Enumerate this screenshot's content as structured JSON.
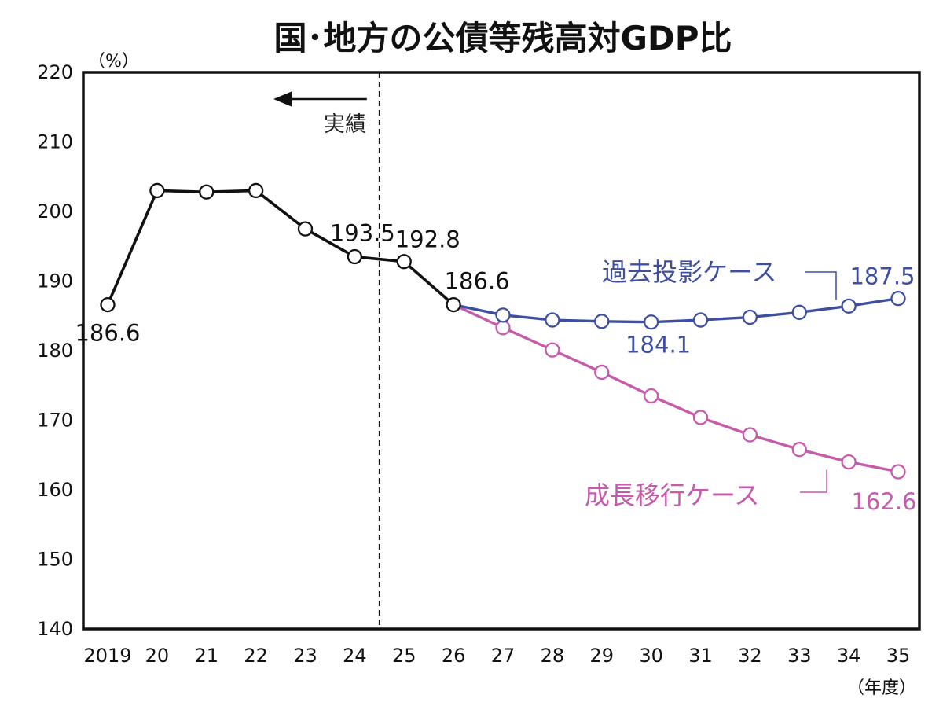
{
  "chart_data": {
    "type": "line",
    "title": "国･地方の公債等残高対GDP比",
    "ylabel": "（%）",
    "xlabel": "（年度）",
    "ylim": [
      140,
      220
    ],
    "yticks": [
      "220",
      "210",
      "200",
      "190",
      "180",
      "170",
      "160",
      "150",
      "140"
    ],
    "ytick_values": [
      220,
      210,
      200,
      190,
      180,
      170,
      160,
      150,
      140
    ],
    "categories": [
      "2019",
      "20",
      "21",
      "22",
      "23",
      "24",
      "25",
      "26",
      "27",
      "28",
      "29",
      "30",
      "31",
      "32",
      "33",
      "34",
      "35"
    ],
    "actual_marker": {
      "label": "実績",
      "between": [
        "24",
        "25"
      ],
      "direction": "left"
    },
    "series": [
      {
        "color": "#111111",
        "x": [
          "2019",
          "20",
          "21",
          "22",
          "23",
          "24",
          "25",
          "26"
        ],
        "values": [
          186.6,
          203.0,
          202.8,
          203.0,
          197.5,
          193.5,
          192.8,
          186.6
        ]
      },
      {
        "name": "過去投影ケース",
        "color": "#3f4fa0",
        "x": [
          "26",
          "27",
          "28",
          "29",
          "30",
          "31",
          "32",
          "33",
          "34",
          "35"
        ],
        "values": [
          186.6,
          185.1,
          184.4,
          184.2,
          184.1,
          184.4,
          184.8,
          185.5,
          186.4,
          187.5
        ]
      },
      {
        "name": "成長移行ケース",
        "color": "#c65aab",
        "x": [
          "26",
          "27",
          "28",
          "29",
          "30",
          "31",
          "32",
          "33",
          "34",
          "35"
        ],
        "values": [
          186.6,
          183.3,
          180.1,
          176.9,
          173.5,
          170.4,
          167.9,
          165.8,
          164.0,
          162.6
        ]
      }
    ],
    "data_labels": [
      {
        "text": "186.6",
        "series": 0,
        "x": "2019"
      },
      {
        "text": "193.5",
        "series": 0,
        "x": "24"
      },
      {
        "text": "192.8",
        "series": 0,
        "x": "25"
      },
      {
        "text": "186.6",
        "series": 0,
        "x": "26"
      },
      {
        "text": "184.1",
        "series": 1,
        "x": "30"
      },
      {
        "text": "187.5",
        "series": 1,
        "x": "35"
      },
      {
        "text": "162.6",
        "series": 2,
        "x": "35"
      }
    ]
  }
}
